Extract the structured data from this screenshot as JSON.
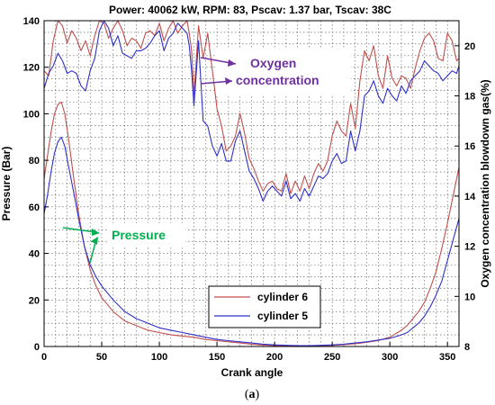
{
  "chart_data": {
    "type": "line",
    "title": "Power: 40062 kW, RPM: 83, Pscav: 1.37 bar, Tscav: 38C",
    "xlabel": "Crank angle",
    "ylabel_left": "Pressure (Bar)",
    "ylabel_right": "Oxygen concentration blowdown gas(%)",
    "xlim": [
      0,
      360
    ],
    "ylim_left": [
      0,
      140
    ],
    "ylim_right": [
      8,
      21
    ],
    "x_ticks": [
      0,
      50,
      100,
      150,
      200,
      250,
      300,
      350
    ],
    "y_ticks_left": [
      0,
      20,
      40,
      60,
      80,
      100,
      120,
      140
    ],
    "y_ticks_right": [
      8,
      10,
      12,
      14,
      16,
      18,
      20
    ],
    "grid": true,
    "legend_position": "bottom-center",
    "legend": [
      "cylinder 6",
      "cylinder 5"
    ],
    "colors": {
      "cylinder 6": "#c0504d",
      "cylinder 5": "#3030c8"
    },
    "annotations": {
      "oxygen": "Oxygen\nconcentration",
      "pressure": "Pressure",
      "oxygen_color": "#7030a0",
      "pressure_color": "#00b050"
    },
    "caption_open": "(",
    "caption_letter": "a",
    "caption_close": ")",
    "series": [
      {
        "name": "cylinder 6",
        "quantity": "pressure",
        "axis": "left",
        "x": [
          0,
          3,
          6,
          9,
          12,
          15,
          18,
          21,
          25,
          30,
          35,
          40,
          45,
          50,
          60,
          70,
          80,
          90,
          100,
          110,
          120,
          130,
          140,
          150,
          160,
          170,
          180,
          190,
          200,
          210,
          220,
          230,
          240,
          250,
          260,
          270,
          280,
          290,
          300,
          310,
          315,
          320,
          325,
          330,
          335,
          340,
          345,
          350,
          355,
          360
        ],
        "y": [
          72,
          82,
          92,
          100,
          104,
          105,
          100,
          90,
          75,
          57,
          43,
          33,
          26,
          21,
          15,
          11,
          9,
          7,
          6,
          5,
          4.5,
          4,
          3,
          2.5,
          2,
          1.5,
          1,
          0.6,
          0.4,
          0.3,
          0.2,
          0.2,
          0.3,
          0.5,
          0.8,
          1.2,
          1.8,
          2.6,
          4,
          7,
          9,
          12,
          15,
          19,
          25,
          32,
          42,
          53,
          65,
          77
        ]
      },
      {
        "name": "cylinder 5",
        "quantity": "pressure",
        "axis": "left",
        "x": [
          0,
          3,
          6,
          9,
          12,
          15,
          18,
          21,
          25,
          30,
          35,
          40,
          45,
          50,
          60,
          70,
          80,
          90,
          100,
          110,
          120,
          130,
          140,
          150,
          160,
          170,
          180,
          190,
          200,
          210,
          220,
          230,
          240,
          250,
          260,
          270,
          280,
          290,
          300,
          310,
          315,
          320,
          325,
          330,
          335,
          340,
          345,
          350,
          355,
          360
        ],
        "y": [
          57,
          65,
          75,
          83,
          88,
          90,
          86,
          78,
          68,
          55,
          43,
          35,
          30,
          26,
          20,
          15,
          12,
          10,
          8,
          7,
          6,
          5,
          4,
          3,
          2.5,
          2,
          1.5,
          1,
          0.7,
          0.5,
          0.4,
          0.4,
          0.5,
          0.7,
          1,
          1.5,
          2,
          2.8,
          3.5,
          5,
          6,
          8,
          10,
          13,
          17,
          22,
          28,
          37,
          46,
          55
        ]
      },
      {
        "name": "cylinder 6",
        "quantity": "oxygen",
        "axis": "right",
        "x": [
          0,
          4,
          8,
          12,
          16,
          20,
          24,
          28,
          32,
          36,
          40,
          44,
          48,
          52,
          56,
          60,
          64,
          68,
          72,
          76,
          80,
          84,
          88,
          92,
          96,
          100,
          104,
          108,
          112,
          116,
          120,
          124,
          126,
          128,
          130,
          134,
          138,
          142,
          146,
          150,
          154,
          158,
          162,
          166,
          170,
          174,
          178,
          182,
          186,
          190,
          194,
          198,
          202,
          206,
          210,
          214,
          218,
          222,
          226,
          230,
          234,
          238,
          242,
          246,
          250,
          254,
          258,
          262,
          266,
          270,
          274,
          278,
          282,
          286,
          290,
          294,
          298,
          302,
          306,
          310,
          314,
          318,
          322,
          326,
          330,
          334,
          338,
          342,
          346,
          350,
          354,
          358,
          360
        ],
        "y": [
          19,
          18.8,
          20.2,
          21,
          20.8,
          20.1,
          20.6,
          20.3,
          19.8,
          20.2,
          19.6,
          20.4,
          21,
          20.9,
          20.3,
          20.7,
          21,
          20.6,
          20,
          20.3,
          20.2,
          19.9,
          20.5,
          20.6,
          20.4,
          20.9,
          20.2,
          20.7,
          21,
          20.5,
          20.8,
          21,
          20.5,
          19.8,
          18,
          20.8,
          19.5,
          20.5,
          19,
          17.5,
          16.8,
          15.8,
          16,
          16.4,
          17.3,
          16.5,
          15.5,
          15.1,
          14.6,
          14.2,
          14.5,
          14.6,
          14.3,
          14.2,
          14.9,
          14.1,
          14.6,
          14.2,
          14.8,
          14.3,
          14.9,
          15.3,
          15,
          15.4,
          16.4,
          17,
          16.6,
          16.4,
          17.7,
          16.7,
          18.6,
          19.8,
          19.4,
          20,
          18.8,
          18.3,
          19.6,
          18.7,
          18.4,
          18.8,
          18.7,
          18.3,
          19.1,
          19.8,
          20.3,
          20.5,
          20.2,
          19.5,
          19.4,
          20.5,
          20.2,
          19.4,
          19.5
        ]
      },
      {
        "name": "cylinder 5",
        "quantity": "oxygen",
        "axis": "right",
        "x": [
          0,
          4,
          8,
          12,
          16,
          20,
          24,
          28,
          32,
          36,
          40,
          44,
          48,
          52,
          56,
          60,
          64,
          68,
          72,
          76,
          80,
          84,
          88,
          92,
          96,
          100,
          104,
          108,
          112,
          116,
          120,
          124,
          126,
          128,
          130,
          134,
          138,
          142,
          146,
          150,
          154,
          158,
          162,
          166,
          170,
          174,
          178,
          182,
          186,
          190,
          194,
          198,
          202,
          206,
          210,
          214,
          218,
          222,
          226,
          230,
          234,
          238,
          242,
          246,
          250,
          254,
          258,
          262,
          266,
          270,
          274,
          278,
          282,
          286,
          290,
          294,
          298,
          302,
          306,
          310,
          314,
          318,
          322,
          326,
          330,
          334,
          338,
          342,
          346,
          350,
          354,
          358,
          360
        ],
        "y": [
          18.3,
          18.9,
          19.2,
          19.7,
          19.4,
          18.9,
          19.0,
          18.9,
          18.4,
          18.2,
          19.0,
          19.5,
          20.6,
          21,
          20.7,
          20.0,
          20.4,
          19.7,
          19.6,
          19.5,
          19.8,
          19.8,
          19.9,
          20.1,
          20.4,
          20.6,
          19.8,
          20.3,
          20.5,
          20.9,
          20.7,
          20.5,
          20.0,
          19.0,
          17.6,
          20.2,
          17.0,
          16.8,
          16.0,
          15.6,
          16.1,
          15.4,
          15.4,
          16.2,
          16.6,
          15.8,
          15.0,
          14.7,
          14.3,
          13.8,
          14.2,
          14.4,
          14.2,
          14.0,
          14.6,
          13.9,
          14.1,
          13.8,
          14.3,
          14.0,
          14.4,
          14.8,
          14.7,
          14.9,
          15.4,
          15.7,
          15.3,
          15.4,
          16.6,
          15.8,
          16.6,
          18.0,
          18.2,
          18.6,
          18.0,
          17.7,
          18.3,
          18.0,
          17.8,
          18.4,
          18.1,
          18.6,
          18.8,
          19.0,
          19.4,
          19.2,
          19.0,
          18.9,
          18.6,
          18.8,
          19.0,
          18.9,
          19.2
        ]
      }
    ]
  }
}
